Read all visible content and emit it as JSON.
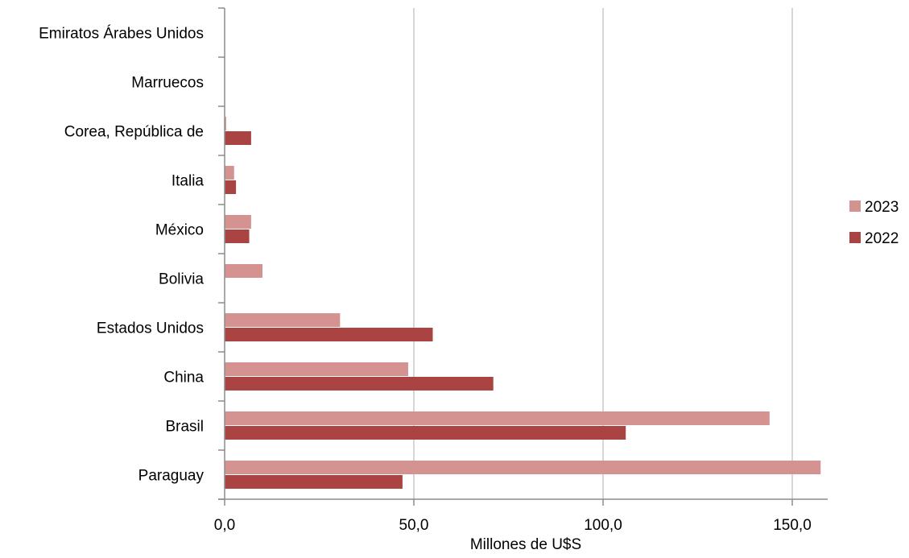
{
  "chart_data": {
    "type": "bar",
    "orientation": "horizontal",
    "categories": [
      "Emiratos Árabes Unidos",
      "Marruecos",
      "Corea, República de",
      "Italia",
      "México",
      "Bolivia",
      "Estados Unidos",
      "China",
      "Brasil",
      "Paraguay"
    ],
    "series": [
      {
        "name": "2023",
        "color": "#d49391",
        "values": [
          0,
          0,
          0.4,
          2.5,
          7.0,
          10.0,
          30.5,
          48.5,
          144.0,
          157.5
        ]
      },
      {
        "name": "2022",
        "color": "#a94442",
        "values": [
          0,
          0,
          7.0,
          3.0,
          6.5,
          0,
          55.0,
          71.0,
          106.0,
          47.0
        ]
      }
    ],
    "xlim": [
      0,
      160
    ],
    "xticks": [
      0,
      50,
      100,
      150
    ],
    "xtick_labels": [
      "0,0",
      "50,0",
      "100,0",
      "150,0"
    ],
    "xlabel": "Millones de U$S",
    "ylabel": "",
    "title": "",
    "grid": "vertical",
    "legend": "right"
  }
}
